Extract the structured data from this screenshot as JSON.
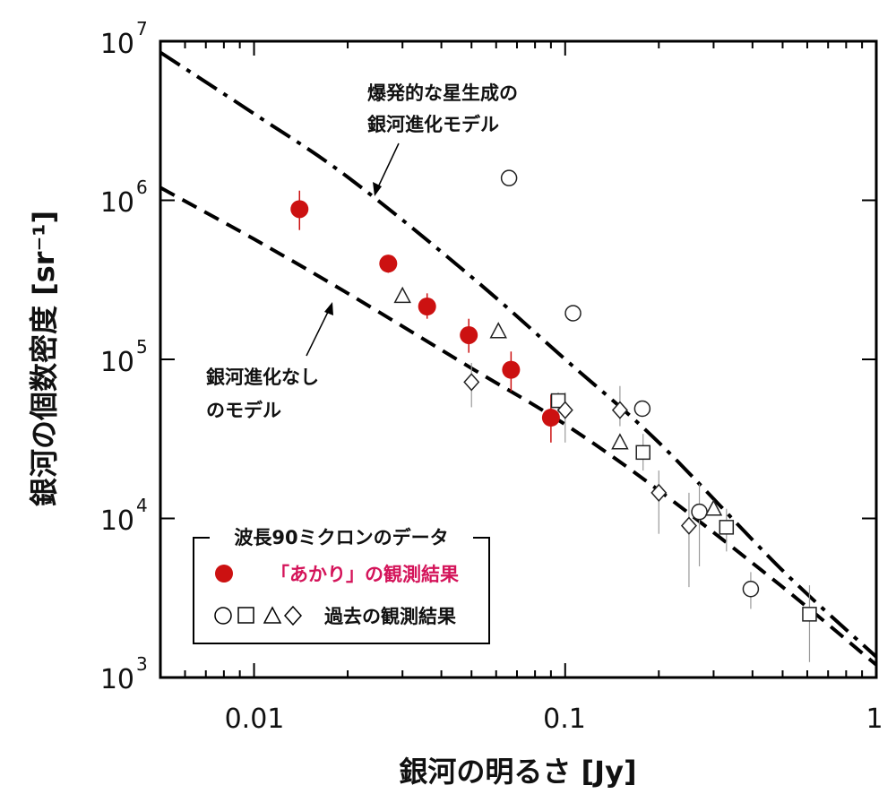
{
  "chart_data": {
    "type": "scatter",
    "xscale": "log",
    "yscale": "log",
    "xlim": [
      0.005,
      1
    ],
    "ylim": [
      1000,
      10000000
    ],
    "xlabel": "銀河の明るさ [Jy]",
    "ylabel": "銀河の個数密度 [sr⁻¹]",
    "xtick_labels": [
      "0.01",
      "0.1",
      "1"
    ],
    "ytick_labels": [
      "10^3",
      "10^4",
      "10^5",
      "10^6",
      "10^7"
    ],
    "colors": {
      "akari": "#cc1111",
      "akari_text": "#d4145a",
      "past": "#222222",
      "errorbar_past": "#999999"
    },
    "models": [
      {
        "name": "burst",
        "style": "dash-dot",
        "x": [
          0.005,
          0.01,
          0.02,
          0.05,
          0.1,
          0.2,
          0.5,
          1.0
        ],
        "y": [
          8500000,
          3500000,
          1400000,
          330000,
          100000,
          30000,
          4700,
          1350
        ]
      },
      {
        "name": "noevo",
        "style": "dashed",
        "x": [
          0.005,
          0.01,
          0.02,
          0.05,
          0.1,
          0.2,
          0.5,
          1.0
        ],
        "y": [
          1200000,
          570000,
          260000,
          88000,
          39000,
          15000,
          3700,
          1200
        ]
      }
    ],
    "annotations": [
      {
        "lines": [
          "爆発的な星生成の",
          "銀河進化モデル"
        ],
        "points_to": "burst"
      },
      {
        "lines": [
          "銀河進化なし",
          "のモデル"
        ],
        "points_to": "noevo"
      }
    ],
    "series": [
      {
        "name": "「あかり」の観測結果",
        "marker": "filled-circle",
        "points": [
          {
            "x": 0.014,
            "y": 880000,
            "lo": 650000,
            "hi": 1150000
          },
          {
            "x": 0.027,
            "y": 400000,
            "lo": 350000,
            "hi": 450000
          },
          {
            "x": 0.036,
            "y": 215000,
            "lo": 180000,
            "hi": 260000
          },
          {
            "x": 0.049,
            "y": 142000,
            "lo": 110000,
            "hi": 180000
          },
          {
            "x": 0.067,
            "y": 86000,
            "lo": 63000,
            "hi": 112000
          },
          {
            "x": 0.09,
            "y": 43000,
            "lo": 30000,
            "hi": 60000
          }
        ]
      },
      {
        "name": "past-circles",
        "marker": "open-circle",
        "points": [
          {
            "x": 0.066,
            "y": 1380000
          },
          {
            "x": 0.106,
            "y": 195000
          },
          {
            "x": 0.177,
            "y": 49000
          },
          {
            "x": 0.27,
            "y": 11000,
            "lo": 5000,
            "hi": 16500
          },
          {
            "x": 0.395,
            "y": 3600,
            "lo": 2700,
            "hi": 4600
          }
        ]
      },
      {
        "name": "past-squares",
        "marker": "open-square",
        "points": [
          {
            "x": 0.095,
            "y": 55000,
            "lo": 45000,
            "hi": 62000
          },
          {
            "x": 0.178,
            "y": 26000,
            "lo": 20000,
            "hi": 34000
          },
          {
            "x": 0.33,
            "y": 8800,
            "lo": 6200,
            "hi": 11500
          },
          {
            "x": 0.61,
            "y": 2500,
            "lo": 1250,
            "hi": 3800
          }
        ]
      },
      {
        "name": "past-triangles",
        "marker": "open-triangle",
        "points": [
          {
            "x": 0.03,
            "y": 250000
          },
          {
            "x": 0.061,
            "y": 150000
          },
          {
            "x": 0.15,
            "y": 30000
          },
          {
            "x": 0.3,
            "y": 11500
          }
        ]
      },
      {
        "name": "past-diamonds",
        "marker": "open-diamond",
        "points": [
          {
            "x": 0.05,
            "y": 72000,
            "lo": 50000,
            "hi": 95000
          },
          {
            "x": 0.1,
            "y": 48000,
            "lo": 30000,
            "hi": 62000
          },
          {
            "x": 0.15,
            "y": 48000,
            "lo": 38000,
            "hi": 68000
          },
          {
            "x": 0.2,
            "y": 14500,
            "lo": 8000,
            "hi": 20000
          },
          {
            "x": 0.25,
            "y": 9000,
            "lo": 3700,
            "hi": 14500
          }
        ]
      }
    ],
    "legend": {
      "title": "波長90ミクロンのデータ",
      "items": [
        {
          "symbols": "●",
          "label": "「あかり」の観測結果"
        },
        {
          "symbols": "○□△◇",
          "label": "過去の観測結果"
        }
      ],
      "placement": "bottom-left"
    }
  }
}
